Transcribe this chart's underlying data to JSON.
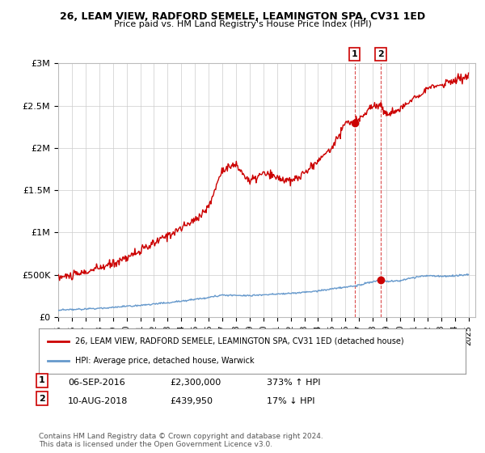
{
  "title": "26, LEAM VIEW, RADFORD SEMELE, LEAMINGTON SPA, CV31 1ED",
  "subtitle": "Price paid vs. HM Land Registry's House Price Index (HPI)",
  "ylabel_ticks": [
    "£0",
    "£500K",
    "£1M",
    "£1.5M",
    "£2M",
    "£2.5M",
    "£3M"
  ],
  "ytick_values": [
    0,
    500000,
    1000000,
    1500000,
    2000000,
    2500000,
    3000000
  ],
  "ylim": [
    0,
    3000000
  ],
  "xlim_start": 1995.0,
  "xlim_end": 2025.5,
  "transaction1_x": 2016.67,
  "transaction1_y": 2300000,
  "transaction1_label": "1",
  "transaction1_date": "06-SEP-2016",
  "transaction1_price": "£2,300,000",
  "transaction1_hpi": "373% ↑ HPI",
  "transaction2_x": 2018.58,
  "transaction2_y": 439950,
  "transaction2_label": "2",
  "transaction2_date": "10-AUG-2018",
  "transaction2_price": "£439,950",
  "transaction2_hpi": "17% ↓ HPI",
  "red_line_color": "#cc0000",
  "blue_line_color": "#6699cc",
  "dashed_line_color": "#cc0000",
  "legend_label_red": "26, LEAM VIEW, RADFORD SEMELE, LEAMINGTON SPA, CV31 1ED (detached house)",
  "legend_label_blue": "HPI: Average price, detached house, Warwick",
  "footnote": "Contains HM Land Registry data © Crown copyright and database right 2024.\nThis data is licensed under the Open Government Licence v3.0.",
  "background_color": "#ffffff",
  "grid_color": "#cccccc"
}
